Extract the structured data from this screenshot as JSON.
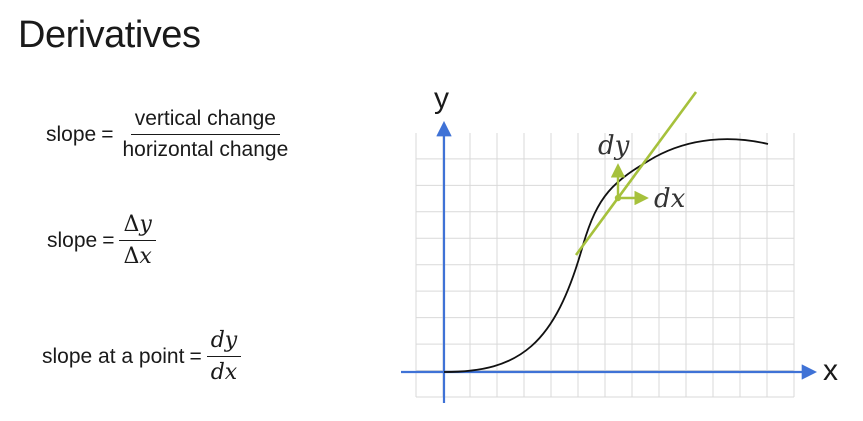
{
  "slide": {
    "title": "Derivatives"
  },
  "formulas": {
    "slope_words": {
      "label": "slope",
      "equals": "=",
      "numerator": "vertical change",
      "denominator": "horizontal change"
    },
    "slope_delta": {
      "label": "slope",
      "equals": "=",
      "numerator_delta": "Δ",
      "numerator_var": "y",
      "denominator_delta": "Δ",
      "denominator_var": "x"
    },
    "slope_at_point": {
      "label": "slope at a point",
      "equals": "=",
      "numerator": "dy",
      "denominator": "dx"
    }
  },
  "graph": {
    "y_axis_label": "y",
    "x_axis_label": "x",
    "dy_label": "dy",
    "dx_label": "dx",
    "colors": {
      "axis": "#3f72d6",
      "grid": "#d9d9d9",
      "curve": "#111111",
      "tangent": "#a6c13c"
    },
    "icons": {
      "y_axis_arrow": "arrow-up-icon",
      "x_axis_arrow": "arrow-right-icon",
      "dy_arrow": "arrow-up-icon",
      "dx_arrow": "arrow-right-icon"
    }
  }
}
